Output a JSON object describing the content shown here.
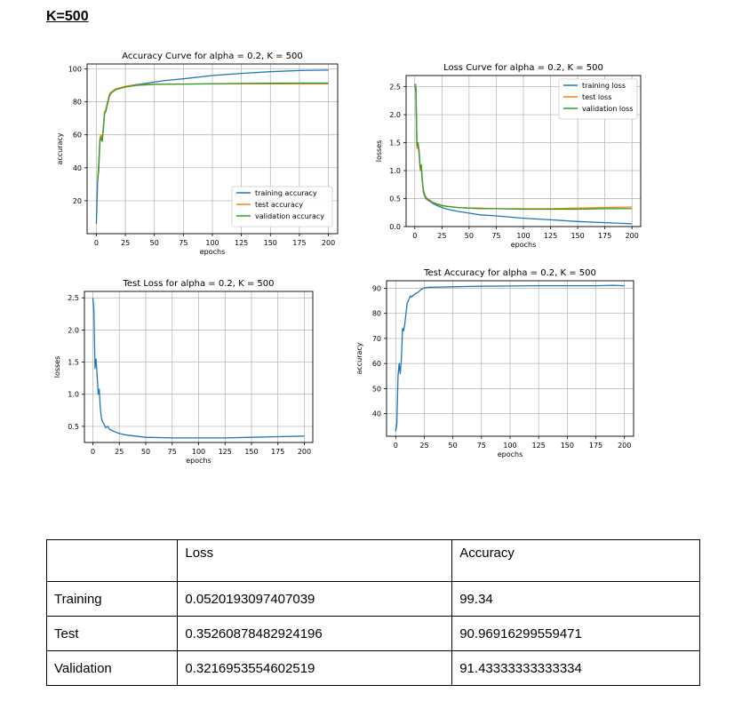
{
  "heading": "K=500",
  "legend_sets": {
    "acc": [
      "training accuracy",
      "test accuracy",
      "validation accuracy"
    ],
    "loss": [
      "training loss",
      "test loss",
      "validation loss"
    ]
  },
  "colors": {
    "training": "#1f77b4",
    "test": "#ff7f0e",
    "validation": "#2ca02c",
    "grid": "#b0b0b0"
  },
  "chart_data": [
    {
      "type": "line",
      "title": "Accuracy Curve for alpha = 0.2, K = 500",
      "xlabel": "epochs",
      "ylabel": "accuracy",
      "xlim": [
        -8,
        208
      ],
      "ylim": [
        0,
        103
      ],
      "xticks": [
        0,
        25,
        50,
        75,
        100,
        125,
        150,
        175,
        200
      ],
      "yticks": [
        20,
        40,
        60,
        80,
        100
      ],
      "grid": true,
      "legend": "lower-right",
      "series": [
        {
          "name": "training accuracy",
          "color": "#1f77b4",
          "x": [
            0,
            1,
            2,
            3,
            4,
            5,
            6,
            7,
            8,
            9,
            10,
            11,
            12,
            13,
            14,
            15,
            17,
            19,
            21,
            23,
            25,
            30,
            35,
            40,
            50,
            60,
            75,
            100,
            125,
            150,
            175,
            200
          ],
          "y": [
            6,
            31,
            43,
            56,
            59,
            57,
            64,
            73,
            74,
            77,
            80,
            83,
            85,
            85.5,
            86.5,
            87,
            87.5,
            88,
            88.5,
            88.8,
            89,
            90,
            90.5,
            91,
            92,
            93,
            94,
            96,
            97.3,
            98.3,
            99,
            99.3
          ]
        },
        {
          "name": "test accuracy",
          "color": "#ff7f0e",
          "x": [
            1,
            2,
            3,
            4,
            5,
            6,
            7,
            8,
            9,
            10,
            11,
            12,
            13,
            15,
            17,
            20,
            25,
            30,
            35,
            40,
            50,
            75,
            100,
            125,
            150,
            175,
            200
          ],
          "y": [
            34,
            40,
            58,
            60,
            57,
            65,
            74,
            75,
            78,
            81,
            84,
            85.5,
            86,
            87,
            88,
            88.5,
            89.5,
            90,
            90.3,
            90.5,
            90.7,
            90.8,
            90.9,
            91,
            91,
            91,
            91
          ]
        },
        {
          "name": "validation accuracy",
          "color": "#2ca02c",
          "x": [
            1,
            2,
            3,
            4,
            5,
            6,
            7,
            8,
            9,
            10,
            11,
            12,
            13,
            15,
            17,
            20,
            25,
            30,
            35,
            40,
            50,
            75,
            100,
            125,
            150,
            175,
            200
          ],
          "y": [
            32,
            38,
            56,
            58,
            56,
            63,
            73,
            74,
            77,
            80,
            83,
            84.5,
            85.5,
            86.5,
            87.5,
            88,
            89,
            89.5,
            90,
            90.2,
            90.6,
            90.8,
            91,
            91.2,
            91.3,
            91.4,
            91.4
          ]
        }
      ]
    },
    {
      "type": "line",
      "title": "Loss Curve for alpha = 0.2, K = 500",
      "xlabel": "epochs",
      "ylabel": "losses",
      "xlim": [
        -8,
        208
      ],
      "ylim": [
        0,
        2.7
      ],
      "xticks": [
        0,
        25,
        50,
        75,
        100,
        125,
        150,
        175,
        200
      ],
      "yticks": [
        0.0,
        0.5,
        1.0,
        1.5,
        2.0,
        2.5
      ],
      "grid": true,
      "legend": "upper-right",
      "series": [
        {
          "name": "training loss",
          "color": "#1f77b4",
          "x": [
            0,
            1,
            2,
            3,
            4,
            5,
            6,
            7,
            8,
            9,
            10,
            12,
            14,
            16,
            18,
            20,
            25,
            30,
            40,
            50,
            60,
            75,
            100,
            125,
            150,
            175,
            200
          ],
          "y": [
            2.55,
            2.4,
            1.4,
            1.45,
            1.3,
            1.0,
            1.05,
            0.8,
            0.6,
            0.55,
            0.5,
            0.47,
            0.45,
            0.42,
            0.4,
            0.38,
            0.34,
            0.31,
            0.27,
            0.24,
            0.21,
            0.19,
            0.15,
            0.12,
            0.09,
            0.07,
            0.05
          ]
        },
        {
          "name": "test loss",
          "color": "#ff7f0e",
          "x": [
            1,
            2,
            3,
            4,
            5,
            6,
            7,
            8,
            9,
            10,
            12,
            14,
            16,
            18,
            20,
            25,
            30,
            40,
            50,
            60,
            75,
            100,
            125,
            150,
            175,
            200
          ],
          "y": [
            2.55,
            1.4,
            1.5,
            1.3,
            1.0,
            1.1,
            0.8,
            0.62,
            0.56,
            0.52,
            0.48,
            0.46,
            0.43,
            0.42,
            0.4,
            0.37,
            0.36,
            0.34,
            0.33,
            0.33,
            0.32,
            0.32,
            0.32,
            0.33,
            0.34,
            0.35
          ]
        },
        {
          "name": "validation loss",
          "color": "#2ca02c",
          "x": [
            1,
            2,
            3,
            4,
            5,
            6,
            7,
            8,
            9,
            10,
            12,
            14,
            16,
            18,
            20,
            25,
            30,
            40,
            50,
            60,
            75,
            100,
            125,
            150,
            175,
            200
          ],
          "y": [
            2.5,
            1.45,
            1.5,
            1.35,
            1.05,
            1.1,
            0.82,
            0.64,
            0.58,
            0.53,
            0.49,
            0.47,
            0.44,
            0.42,
            0.41,
            0.38,
            0.36,
            0.34,
            0.33,
            0.32,
            0.32,
            0.31,
            0.31,
            0.31,
            0.32,
            0.32
          ]
        }
      ]
    },
    {
      "type": "line",
      "title": "Test Loss for alpha = 0.2, K = 500",
      "xlabel": "epochs",
      "ylabel": "losses",
      "xlim": [
        -8,
        208
      ],
      "ylim": [
        0.25,
        2.6
      ],
      "xticks": [
        0,
        25,
        50,
        75,
        100,
        125,
        150,
        175,
        200
      ],
      "yticks": [
        0.5,
        1.0,
        1.5,
        2.0,
        2.5
      ],
      "grid": true,
      "series": [
        {
          "color": "#1f77b4",
          "x": [
            0,
            1,
            2,
            3,
            4,
            5,
            6,
            7,
            8,
            9,
            10,
            11,
            12,
            14,
            16,
            18,
            20,
            25,
            30,
            40,
            50,
            75,
            100,
            125,
            150,
            175,
            200
          ],
          "y": [
            2.5,
            2.3,
            1.4,
            1.55,
            1.3,
            1.0,
            1.08,
            0.8,
            0.64,
            0.58,
            0.55,
            0.52,
            0.48,
            0.5,
            0.45,
            0.44,
            0.42,
            0.39,
            0.37,
            0.35,
            0.33,
            0.32,
            0.32,
            0.32,
            0.33,
            0.34,
            0.35
          ]
        }
      ]
    },
    {
      "type": "line",
      "title": "Test Accuracy for alpha = 0.2, K = 500",
      "xlabel": "epochs",
      "ylabel": "accuracy",
      "xlim": [
        -8,
        208
      ],
      "ylim": [
        31,
        93
      ],
      "xticks": [
        0,
        25,
        50,
        75,
        100,
        125,
        150,
        175,
        200
      ],
      "yticks": [
        40,
        50,
        60,
        70,
        80,
        90
      ],
      "grid": true,
      "series": [
        {
          "color": "#1f77b4",
          "x": [
            0,
            1,
            2,
            3,
            4,
            5,
            6,
            7,
            8,
            9,
            10,
            11,
            12,
            13,
            14,
            16,
            18,
            20,
            22,
            25,
            30,
            40,
            50,
            60,
            75,
            100,
            125,
            150,
            175,
            190,
            200
          ],
          "y": [
            33,
            36,
            55,
            60,
            56,
            62,
            74,
            73,
            76,
            80,
            84,
            85,
            86,
            87,
            86.5,
            87.5,
            88,
            88.5,
            89.5,
            90.2,
            90.4,
            90.5,
            90.6,
            90.7,
            90.8,
            90.9,
            91,
            91,
            91,
            91.2,
            91
          ]
        }
      ]
    }
  ],
  "table": {
    "headers": [
      "",
      "Loss",
      "Accuracy"
    ],
    "rows": [
      [
        "Training",
        "0.0520193097407039",
        "99.34"
      ],
      [
        "Test",
        "0.35260878482924196",
        "90.96916299559471"
      ],
      [
        "Validation",
        "0.3216953554602519",
        "91.43333333333334"
      ]
    ]
  }
}
